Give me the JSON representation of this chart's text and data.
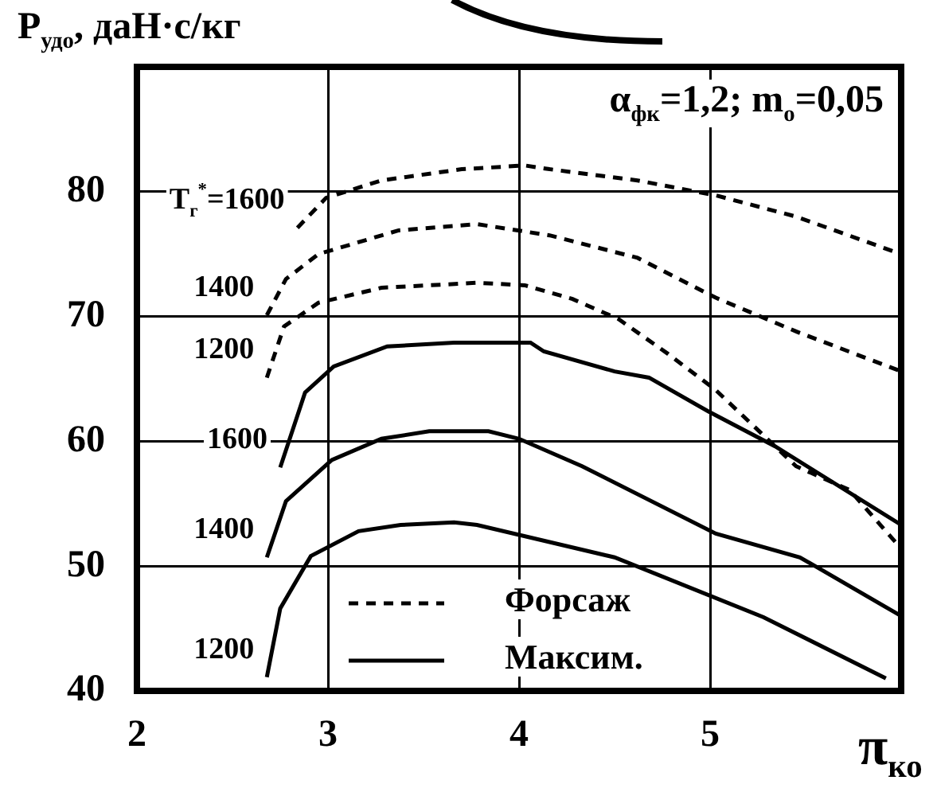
{
  "chart_data": {
    "type": "line",
    "ylabel": "P$_{удо}$, даН·с/кг",
    "xlabel": "π$_{ко}$",
    "annotations": [
      "α$_{фк}$=1,2; m$_{о}$=0,05",
      "Форсаж",
      "Максим."
    ],
    "xlim": [
      2,
      6
    ],
    "xticks": [
      2,
      3,
      4,
      5
    ],
    "ylim": [
      40,
      90
    ],
    "yticks": [
      40,
      50,
      60,
      70,
      80
    ],
    "grid": true,
    "series": [
      {
        "name": "T$_{г}$$^{*}$=1600",
        "color": "#000000",
        "line_style": "dashed",
        "x": [
          2.84,
          2.99,
          3.28,
          3.7,
          4.03,
          4.16,
          4.62,
          5.03,
          5.45,
          6.0
        ],
        "values": [
          77.1,
          79.5,
          80.9,
          81.8,
          82.1,
          81.8,
          80.9,
          79.7,
          78.0,
          75.0
        ]
      },
      {
        "name": "1400",
        "color": "#000000",
        "line_style": "dashed",
        "x": [
          2.68,
          2.78,
          2.95,
          3.37,
          3.78,
          4.16,
          4.62,
          5.03,
          5.45,
          6.0
        ],
        "values": [
          70.1,
          73.0,
          75.0,
          76.9,
          77.4,
          76.5,
          74.7,
          71.5,
          68.8,
          65.6
        ]
      },
      {
        "name": "1200",
        "color": "#000000",
        "line_style": "dashed",
        "x": [
          2.68,
          2.77,
          2.95,
          3.28,
          3.78,
          4.03,
          4.28,
          4.52,
          4.78,
          5.03,
          5.45,
          5.73,
          6.0
        ],
        "values": [
          65.1,
          69.2,
          71.1,
          72.3,
          72.7,
          72.5,
          71.4,
          69.8,
          67.0,
          64.1,
          58.0,
          56.1,
          51.4
        ]
      },
      {
        "name": "1600",
        "color": "#000000",
        "line_style": "solid",
        "x": [
          2.75,
          2.88,
          3.03,
          3.31,
          3.66,
          4.06,
          4.13,
          4.5,
          4.68,
          4.99,
          5.34,
          6.0
        ],
        "values": [
          57.9,
          63.9,
          66.0,
          67.6,
          67.9,
          67.9,
          67.2,
          65.6,
          65.1,
          62.4,
          59.6,
          53.3
        ]
      },
      {
        "name": "1400",
        "color": "#000000",
        "line_style": "solid",
        "x": [
          2.68,
          2.78,
          3.02,
          3.28,
          3.53,
          3.84,
          4.0,
          4.33,
          5.03,
          5.47,
          6.0
        ],
        "values": [
          50.7,
          55.2,
          58.5,
          60.2,
          60.8,
          60.8,
          60.2,
          58.0,
          52.6,
          50.7,
          46.0
        ]
      },
      {
        "name": "1200",
        "color": "#000000",
        "line_style": "solid",
        "x": [
          2.68,
          2.75,
          2.91,
          3.16,
          3.38,
          3.66,
          3.78,
          4.5,
          5.28,
          5.92
        ],
        "values": [
          41.1,
          46.6,
          50.8,
          52.8,
          53.3,
          53.5,
          53.3,
          50.7,
          45.9,
          41.0
        ]
      }
    ]
  }
}
